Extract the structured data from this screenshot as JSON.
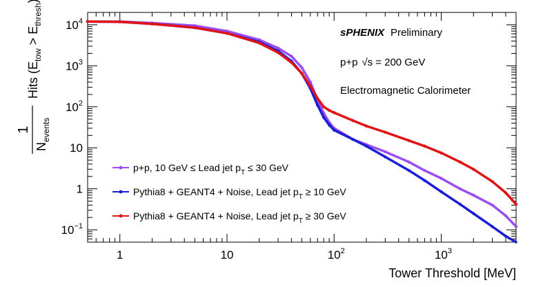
{
  "chart_data": {
    "type": "line",
    "xscale": "log",
    "yscale": "log",
    "xlim": [
      0.5,
      5000
    ],
    "ylim": [
      0.05,
      20000
    ],
    "xlabel": "Tower Threshold [MeV]",
    "ylabel": {
      "prefix": "1",
      "denominator": "N",
      "denominator_sub": "events",
      "hits": "Hits (E",
      "tow": "tow",
      "gt": " > E",
      "thresh": "thresh",
      "close": ")"
    },
    "annotations": {
      "experiment": "sPHENIX",
      "status": "Preliminary",
      "system": "p+p",
      "sqrt": "√s",
      "energy": "= 200 GeV",
      "detector": "Electromagnetic Calorimeter"
    },
    "xticks": [
      {
        "value": 1,
        "label": "1"
      },
      {
        "value": 10,
        "label": "10"
      },
      {
        "value": 100,
        "base": "10",
        "exp": "2"
      },
      {
        "value": 1000,
        "base": "10",
        "exp": "3"
      }
    ],
    "yticks": [
      {
        "value": 0.1,
        "base": "10",
        "exp": "−1"
      },
      {
        "value": 1,
        "label": "1"
      },
      {
        "value": 10,
        "label": "10"
      },
      {
        "value": 100,
        "base": "10",
        "exp": "2"
      },
      {
        "value": 1000,
        "base": "10",
        "exp": "3"
      },
      {
        "value": 10000,
        "base": "10",
        "exp": "4"
      }
    ],
    "legend_position": "bottom-left",
    "series": [
      {
        "name": "p+p, 10 GeV ≤ Lead jet p",
        "sub": "T",
        "suffix": " ≤ 30 GeV",
        "color": "#9B4DF0",
        "x": [
          0.5,
          1,
          2,
          5,
          10,
          20,
          30,
          40,
          50,
          60,
          70,
          80,
          90,
          100,
          150,
          200,
          300,
          500,
          700,
          1000,
          1500,
          2000,
          3000,
          4000,
          5000
        ],
        "y": [
          12000,
          12000,
          11000,
          9500,
          7000,
          4300,
          2700,
          1700,
          900,
          400,
          150,
          70,
          42,
          30,
          16,
          12,
          8,
          4.5,
          2.8,
          1.8,
          1.0,
          0.7,
          0.4,
          0.22,
          0.12
        ]
      },
      {
        "name": "Pythia8 + GEANT4 + Noise, Lead jet p",
        "sub": "T",
        "suffix": " ≥ 10 GeV",
        "color": "#1A1FD6",
        "x": [
          0.5,
          1,
          2,
          5,
          10,
          20,
          30,
          40,
          50,
          60,
          70,
          80,
          90,
          100,
          150,
          200,
          300,
          500,
          700,
          1000,
          1500,
          2000,
          3000,
          4000,
          5000
        ],
        "y": [
          12000,
          11800,
          10500,
          8500,
          6200,
          3800,
          2300,
          1300,
          650,
          280,
          110,
          55,
          36,
          27,
          16,
          11,
          6,
          2.8,
          1.6,
          0.85,
          0.42,
          0.25,
          0.12,
          0.07,
          0.045
        ]
      },
      {
        "name": "Pythia8 + GEANT4 + Noise, Lead jet p",
        "sub": "T",
        "suffix": " ≥ 30 GeV",
        "color": "#E01414",
        "x": [
          0.5,
          1,
          2,
          5,
          10,
          20,
          30,
          40,
          50,
          60,
          70,
          80,
          90,
          100,
          150,
          200,
          300,
          500,
          700,
          1000,
          1500,
          2000,
          3000,
          4000,
          5000
        ],
        "y": [
          12000,
          11800,
          10500,
          8500,
          6200,
          3600,
          2100,
          1200,
          650,
          320,
          160,
          100,
          82,
          72,
          46,
          34,
          24,
          15,
          11,
          7.5,
          4.5,
          3.0,
          1.5,
          0.8,
          0.42
        ]
      }
    ]
  }
}
